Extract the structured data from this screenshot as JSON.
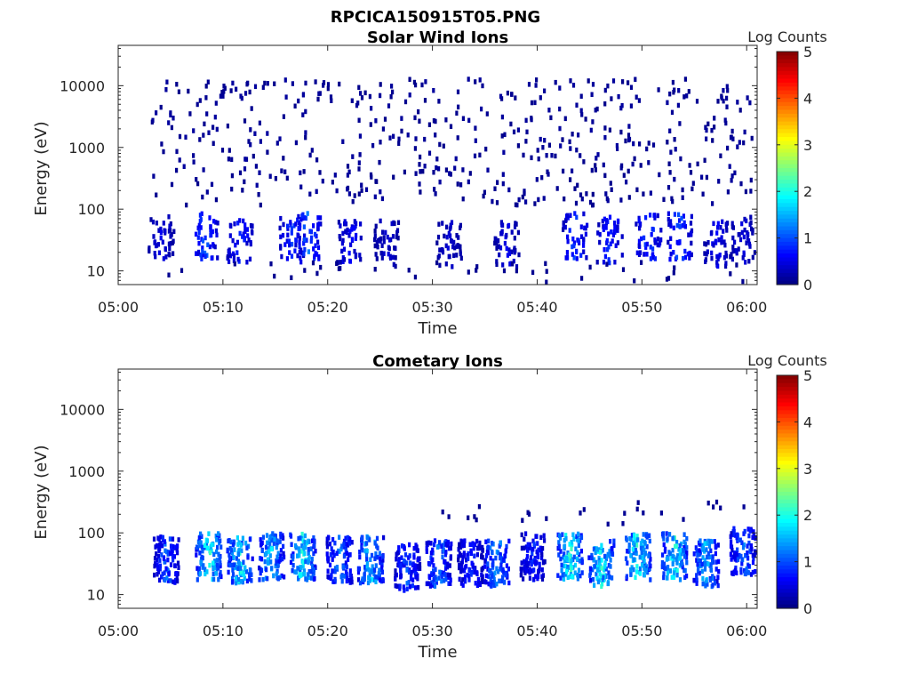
{
  "figure": {
    "title": "RPCICA150915T05.PNG"
  },
  "chart_data": [
    {
      "type": "heatmap",
      "title": "Solar Wind Ions",
      "xlabel": "Time",
      "ylabel": "Energy (eV)",
      "x_ticks": [
        "05:00",
        "05:10",
        "05:20",
        "05:30",
        "05:40",
        "05:50",
        "06:00"
      ],
      "xlim_minutes": [
        0,
        61
      ],
      "y_ticks": [
        "10",
        "100",
        "1000",
        "10000"
      ],
      "y_scale": "log",
      "ylim": [
        6,
        45000
      ],
      "colorbar": {
        "label": "Log Counts",
        "ticks": [
          "0",
          "1",
          "2",
          "3",
          "4",
          "5"
        ],
        "range": [
          0,
          5
        ],
        "colormap": "jet"
      },
      "description": "Sparse dark-blue scattered counts at 300-10000 eV across the hour; clustered low-energy (20-80 eV) patches at roughly 05:04, 05:08, 05:12, 05:17, 05:22, 05:26, 05:32, 05:37, 05:43, 05:47, 05:51, 05:54, 05:57, 05:59 with log counts mostly 0-1.3",
      "bursts": [
        {
          "t": 4.0,
          "e": 35,
          "peak": 0.6
        },
        {
          "t": 8.2,
          "e": 40,
          "peak": 1.2
        },
        {
          "t": 11.5,
          "e": 35,
          "peak": 1.0
        },
        {
          "t": 16.5,
          "e": 35,
          "peak": 1.1
        },
        {
          "t": 18.0,
          "e": 40,
          "peak": 1.3
        },
        {
          "t": 22.0,
          "e": 35,
          "peak": 0.8
        },
        {
          "t": 25.5,
          "e": 30,
          "peak": 0.5
        },
        {
          "t": 31.5,
          "e": 30,
          "peak": 0.5
        },
        {
          "t": 37.0,
          "e": 30,
          "peak": 0.6
        },
        {
          "t": 43.5,
          "e": 40,
          "peak": 1.1
        },
        {
          "t": 46.8,
          "e": 35,
          "peak": 1.0
        },
        {
          "t": 50.5,
          "e": 40,
          "peak": 1.2
        },
        {
          "t": 53.5,
          "e": 40,
          "peak": 1.2
        },
        {
          "t": 57.0,
          "e": 30,
          "peak": 0.7
        },
        {
          "t": 59.5,
          "e": 35,
          "peak": 0.6
        }
      ]
    },
    {
      "type": "heatmap",
      "title": "Cometary Ions",
      "xlabel": "Time",
      "ylabel": "Energy (eV)",
      "x_ticks": [
        "05:00",
        "05:10",
        "05:20",
        "05:30",
        "05:40",
        "05:50",
        "06:00"
      ],
      "xlim_minutes": [
        0,
        61
      ],
      "y_ticks": [
        "10",
        "100",
        "1000",
        "10000"
      ],
      "y_scale": "log",
      "ylim": [
        6,
        45000
      ],
      "colorbar": {
        "label": "Log Counts",
        "ticks": [
          "0",
          "1",
          "2",
          "3",
          "4",
          "5"
        ],
        "range": [
          0,
          5
        ],
        "colormap": "jet"
      },
      "description": "Periodic bursts of cometary ions between about 15 and 150 eV, roughly every 3 minutes from 05:03 to 06:00, with log counts reaching 2-2.5 in burst cores",
      "bursts": [
        {
          "t": 4.5,
          "e": 40,
          "peak": 1.3
        },
        {
          "t": 8.5,
          "e": 45,
          "peak": 2.5
        },
        {
          "t": 11.5,
          "e": 40,
          "peak": 2.2
        },
        {
          "t": 14.5,
          "e": 45,
          "peak": 2.0
        },
        {
          "t": 17.5,
          "e": 45,
          "peak": 2.3
        },
        {
          "t": 21.0,
          "e": 40,
          "peak": 1.5
        },
        {
          "t": 24.0,
          "e": 40,
          "peak": 2.0
        },
        {
          "t": 27.5,
          "e": 30,
          "peak": 1.2
        },
        {
          "t": 30.5,
          "e": 35,
          "peak": 1.5
        },
        {
          "t": 33.5,
          "e": 35,
          "peak": 1.0
        },
        {
          "t": 36.0,
          "e": 35,
          "peak": 1.8
        },
        {
          "t": 39.5,
          "e": 45,
          "peak": 1.0
        },
        {
          "t": 43.0,
          "e": 45,
          "peak": 2.5
        },
        {
          "t": 46.0,
          "e": 35,
          "peak": 2.3
        },
        {
          "t": 49.5,
          "e": 45,
          "peak": 2.4
        },
        {
          "t": 53.0,
          "e": 45,
          "peak": 2.5
        },
        {
          "t": 56.0,
          "e": 35,
          "peak": 1.8
        },
        {
          "t": 59.5,
          "e": 55,
          "peak": 1.5
        }
      ]
    }
  ]
}
